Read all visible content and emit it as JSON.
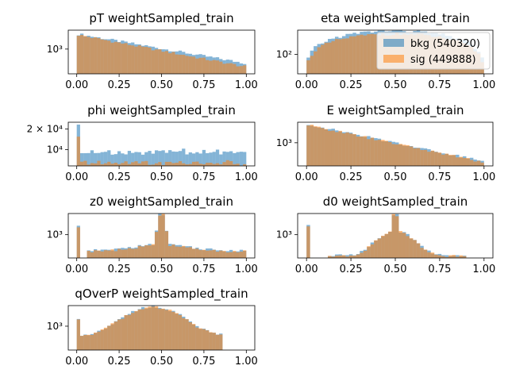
{
  "chart_data": [
    {
      "type": "histogram",
      "title": "pT weightSampled_train",
      "yscale": "log",
      "xlim": [
        -0.05,
        1.05
      ],
      "ylim": [
        260,
        2800
      ],
      "xticks": [
        0.0,
        0.25,
        0.5,
        0.75,
        1.0
      ],
      "xtick_labels": [
        "0.00",
        "0.25",
        "0.50",
        "0.75",
        "1.00"
      ],
      "yticks": [
        1000
      ],
      "ytick_labels": [
        "10³"
      ],
      "shape": {
        "kind": "pt",
        "bkg": {
          "start": 2300,
          "end": 460
        },
        "sig": {
          "start": 2200,
          "end": 380
        }
      }
    },
    {
      "type": "histogram",
      "title": "eta weightSampled_train",
      "yscale": "log",
      "xlim": [
        -0.05,
        1.05
      ],
      "ylim": [
        40,
        310
      ],
      "xticks": [
        0.0,
        0.25,
        0.5,
        0.75,
        1.0
      ],
      "xtick_labels": [
        "0.00",
        "0.25",
        "0.50",
        "0.75",
        "1.00"
      ],
      "yticks": [
        100
      ],
      "ytick_labels": [
        "10²"
      ],
      "legend": {
        "position": "upper-right",
        "entries": [
          "bkg (540320)",
          "sig (449888)"
        ]
      },
      "shape": {
        "kind": "eta",
        "bkg": {
          "peak": 300,
          "edge": 45
        },
        "sig": {
          "peak": 260,
          "edge": 40
        }
      }
    },
    {
      "type": "histogram",
      "title": "phi weightSampled_train",
      "yscale": "log",
      "xlim": [
        -0.05,
        1.05
      ],
      "ylim": [
        5800,
        25000
      ],
      "xticks": [
        0.0,
        0.25,
        0.5,
        0.75,
        1.0
      ],
      "xtick_labels": [
        "0.00",
        "0.25",
        "0.50",
        "0.75",
        "1.00"
      ],
      "yticks": [
        10000,
        20000
      ],
      "ytick_labels": [
        "10⁴",
        "2 × 10⁴"
      ],
      "shape": {
        "kind": "phi",
        "bkg": {
          "level": 9300,
          "first": 24000
        },
        "sig": {
          "level": 6400,
          "first": 15000
        }
      }
    },
    {
      "type": "histogram",
      "title": "E weightSampled_train",
      "yscale": "log",
      "xlim": [
        -0.05,
        1.05
      ],
      "ylim": [
        260,
        3300
      ],
      "xticks": [
        0.0,
        0.25,
        0.5,
        0.75,
        1.0
      ],
      "xtick_labels": [
        "0.00",
        "0.25",
        "0.50",
        "0.75",
        "1.00"
      ],
      "yticks": [
        1000
      ],
      "ytick_labels": [
        "10³"
      ],
      "shape": {
        "kind": "pt",
        "bkg": {
          "start": 2950,
          "end": 340
        },
        "sig": {
          "start": 2850,
          "end": 320
        }
      }
    },
    {
      "type": "histogram",
      "title": "z0 weightSampled_train",
      "yscale": "log",
      "xlim": [
        -0.05,
        1.05
      ],
      "ylim": [
        260,
        3400
      ],
      "xticks": [
        0.0,
        0.25,
        0.5,
        0.75,
        1.0
      ],
      "xtick_labels": [
        "0.00",
        "0.25",
        "0.50",
        "0.75",
        "1.00"
      ],
      "yticks": [
        1000
      ],
      "ytick_labels": [
        "10³"
      ],
      "shape": {
        "kind": "z0",
        "bkg": {
          "base": 400,
          "peak": 3300,
          "first": 1650
        },
        "sig": {
          "base": 380,
          "peak": 3200,
          "first": 1600
        }
      }
    },
    {
      "type": "histogram",
      "title": "d0 weightSampled_train",
      "yscale": "log",
      "xlim": [
        -0.05,
        1.05
      ],
      "ylim": [
        260,
        3400
      ],
      "xticks": [
        0.0,
        0.25,
        0.5,
        0.75,
        1.0
      ],
      "xtick_labels": [
        "0.00",
        "0.25",
        "0.50",
        "0.75",
        "1.00"
      ],
      "yticks": [
        1000
      ],
      "ytick_labels": [
        "10³"
      ],
      "shape": {
        "kind": "d0",
        "bkg": {
          "base": 300,
          "peak": 3200,
          "first": 1700
        },
        "sig": {
          "base": 290,
          "peak": 3100,
          "first": 1650
        }
      }
    },
    {
      "type": "histogram",
      "title": "qOverP weightSampled_train",
      "yscale": "log",
      "xlim": [
        -0.05,
        1.05
      ],
      "ylim": [
        260,
        3200
      ],
      "xticks": [
        0.0,
        0.25,
        0.5,
        0.75,
        1.0
      ],
      "xtick_labels": [
        "0.00",
        "0.25",
        "0.50",
        "0.75",
        "1.00"
      ],
      "yticks": [
        1000
      ],
      "ytick_labels": [
        "10³"
      ],
      "shape": {
        "kind": "qop",
        "bkg": {
          "base": 580,
          "peak": 3000,
          "first": 1550
        },
        "sig": {
          "base": 560,
          "peak": 2900,
          "first": 1500
        }
      }
    }
  ],
  "colors": {
    "bkg": "#1f77b4",
    "sig": "#ff7f0e"
  },
  "legend": {
    "bkg_label": "bkg (540320)",
    "sig_label": "sig (449888)"
  }
}
